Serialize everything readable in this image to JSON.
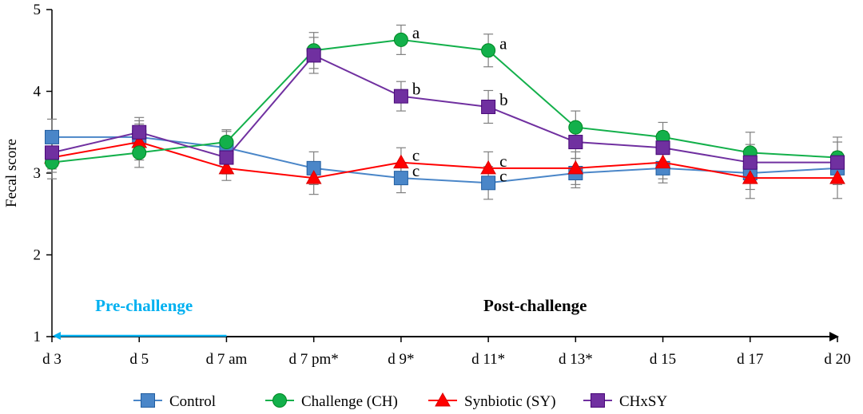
{
  "chart_data": {
    "type": "line",
    "title": "",
    "xlabel": "",
    "ylabel": "Fecal score",
    "ylim": [
      1,
      5
    ],
    "yticks": [
      "1",
      "2",
      "3",
      "4",
      "5"
    ],
    "categories": [
      "d 3",
      "d 5",
      "d 7 am",
      "d 7 pm*",
      "d 9*",
      "d 11*",
      "d 13*",
      "d 15",
      "d 17",
      "d 20"
    ],
    "series": [
      {
        "name": "Control",
        "marker": "square",
        "color": "#4a86c8",
        "values": [
          3.44,
          3.44,
          3.31,
          3.06,
          2.94,
          2.88,
          3.0,
          3.06,
          3.0,
          3.06
        ],
        "errors": [
          0.22,
          0.2,
          0.2,
          0.2,
          0.18,
          0.2,
          0.18,
          0.18,
          0.2,
          0.2
        ]
      },
      {
        "name": "Challenge (CH)",
        "marker": "circle",
        "color": "#13b04b",
        "values": [
          3.13,
          3.25,
          3.38,
          4.5,
          4.63,
          4.5,
          3.56,
          3.44,
          3.25,
          3.19
        ],
        "errors": [
          0.2,
          0.18,
          0.15,
          0.22,
          0.18,
          0.2,
          0.2,
          0.18,
          0.25,
          0.25
        ]
      },
      {
        "name": "Synbiotic (SY)",
        "marker": "triangle",
        "color": "#ff0000",
        "values": [
          3.19,
          3.38,
          3.06,
          2.94,
          3.13,
          3.06,
          3.06,
          3.13,
          2.94,
          2.94
        ],
        "errors": [
          0.18,
          0.22,
          0.15,
          0.2,
          0.18,
          0.2,
          0.2,
          0.2,
          0.25,
          0.25
        ]
      },
      {
        "name": "CHxSY",
        "marker": "square",
        "color": "#7030a0",
        "values": [
          3.25,
          3.5,
          3.19,
          4.44,
          3.94,
          3.81,
          3.38,
          3.31,
          3.13,
          3.13
        ],
        "errors": [
          0.2,
          0.18,
          0.2,
          0.22,
          0.18,
          0.2,
          0.2,
          0.2,
          0.22,
          0.25
        ]
      }
    ],
    "annotations": [
      {
        "text": "a",
        "category": "d 9*",
        "value": 4.63
      },
      {
        "text": "a",
        "category": "d 11*",
        "value": 4.5
      },
      {
        "text": "b",
        "category": "d 9*",
        "value": 3.94
      },
      {
        "text": "b",
        "category": "d 11*",
        "value": 3.81
      },
      {
        "text": "c",
        "category": "d 9*",
        "value": 3.13
      },
      {
        "text": "c",
        "category": "d 9*",
        "value": 2.94
      },
      {
        "text": "c",
        "category": "d 11*",
        "value": 3.06
      },
      {
        "text": "c",
        "category": "d 11*",
        "value": 2.88
      }
    ],
    "phases": {
      "pre": {
        "label": "Pre-challenge",
        "from": "d 3",
        "to": "d 7 am",
        "color": "#00b0f0"
      },
      "post": {
        "label": "Post-challenge",
        "from": "d 7 am",
        "to": "d 20",
        "color": "#000000"
      }
    },
    "legend": "bottom"
  }
}
